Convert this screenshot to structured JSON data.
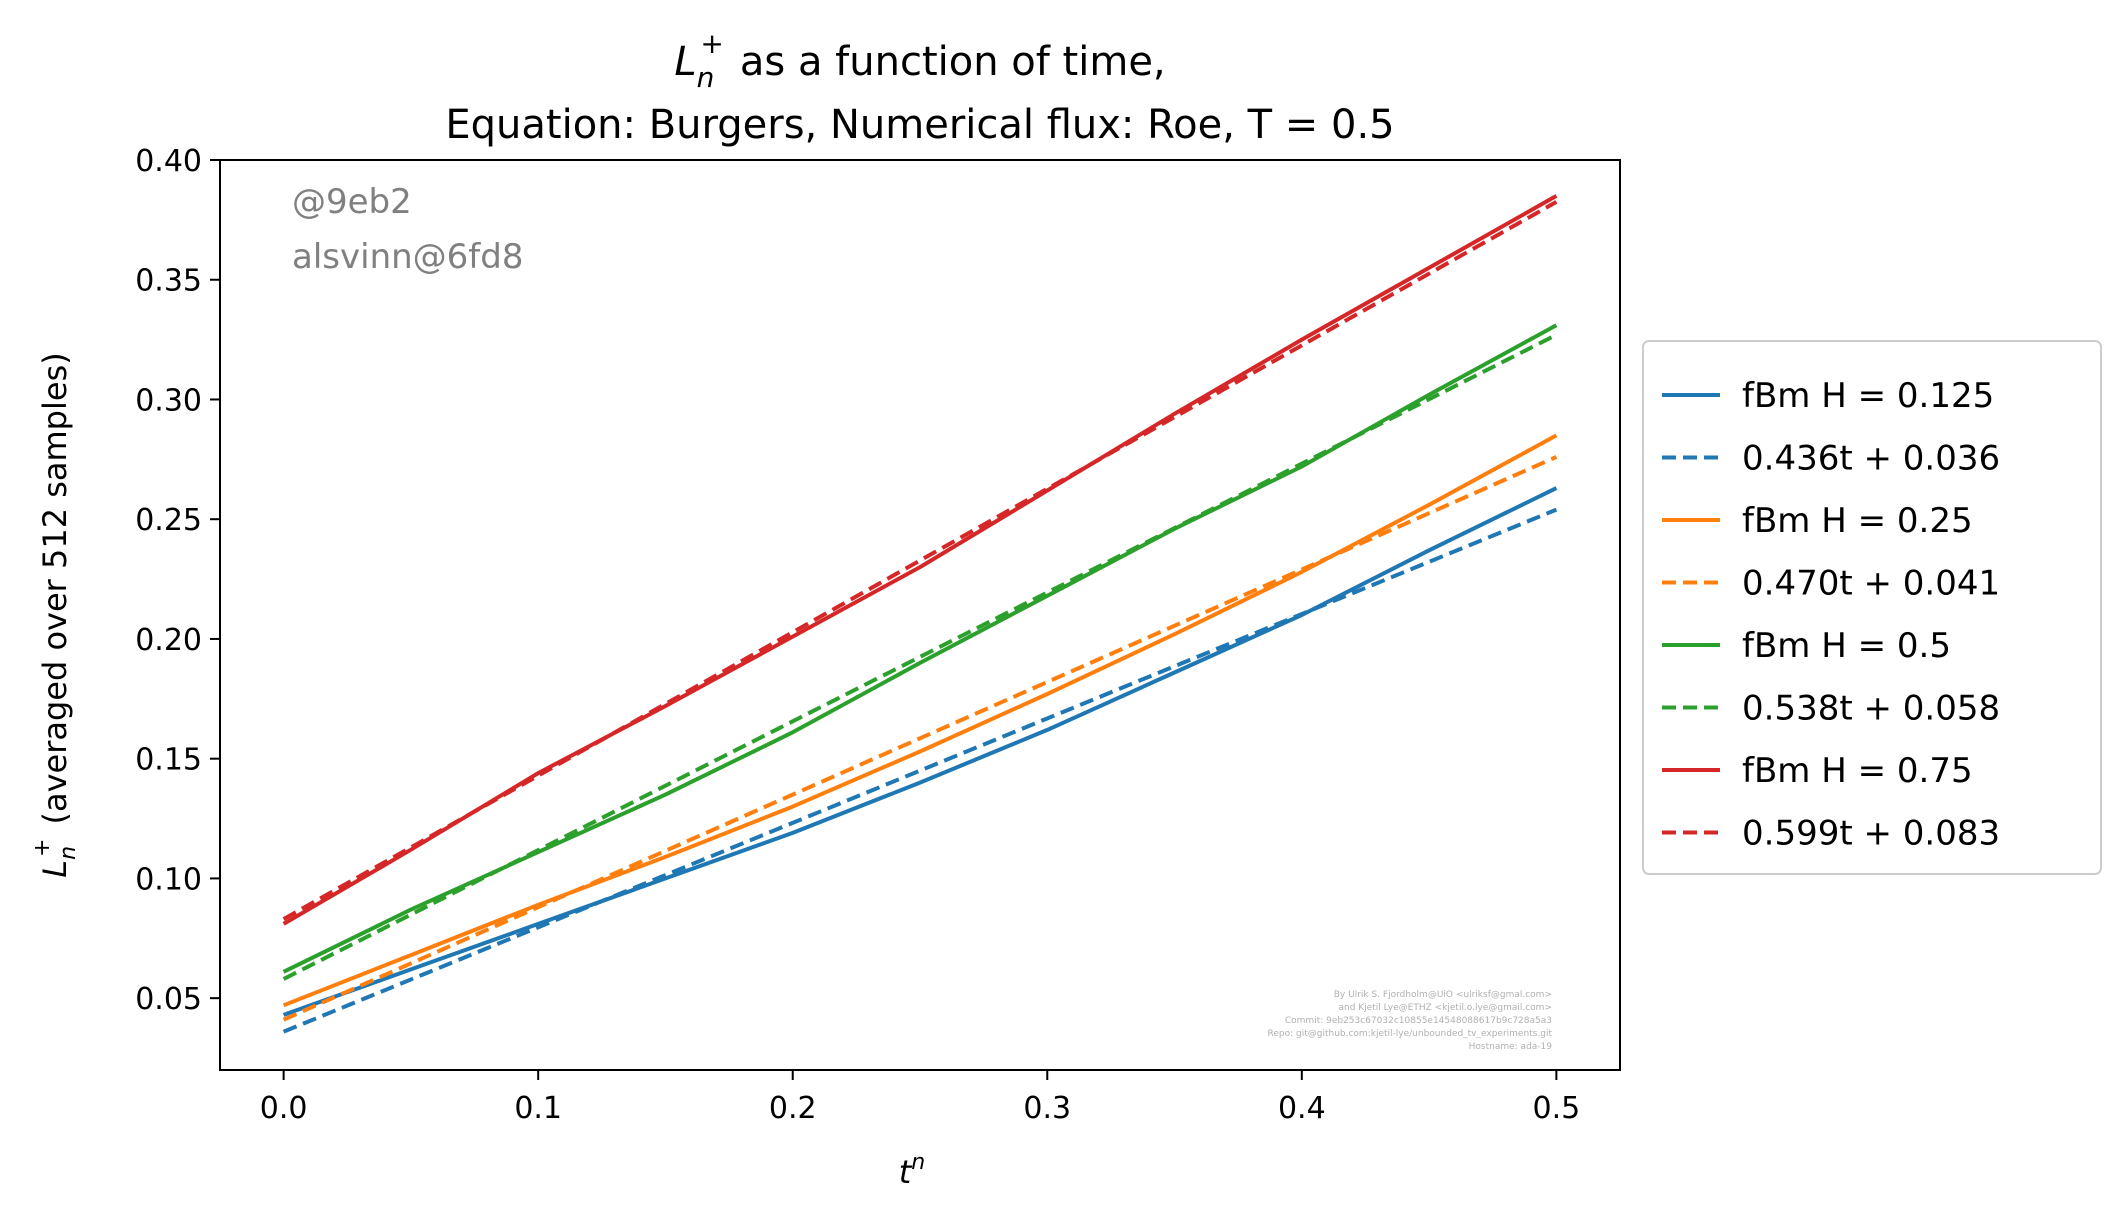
{
  "chart_data": {
    "type": "line",
    "title_main": "as a function of time,",
    "title_symbol": "L",
    "title_sub": "n",
    "title_sup": "+",
    "subtitle": "Equation: Burgers, Numerical flux: Roe, T = 0.5",
    "xlabel": "t",
    "xlabel_sup": "n",
    "ylabel_symbol": "L",
    "ylabel_sub": "n",
    "ylabel_sup": "+",
    "ylabel_text": "(averaged over 512 samples)",
    "xlim": [
      -0.025,
      0.525
    ],
    "ylim": [
      0.02,
      0.4
    ],
    "xticks": [
      0.0,
      0.1,
      0.2,
      0.3,
      0.4,
      0.5
    ],
    "xtick_labels": [
      "0.0",
      "0.1",
      "0.2",
      "0.3",
      "0.4",
      "0.5"
    ],
    "yticks": [
      0.05,
      0.1,
      0.15,
      0.2,
      0.25,
      0.3,
      0.35,
      0.4
    ],
    "ytick_labels": [
      "0.05",
      "0.10",
      "0.15",
      "0.20",
      "0.25",
      "0.30",
      "0.35",
      "0.40"
    ],
    "grid": false,
    "legend_position": "outside-right",
    "series": [
      {
        "name": "fBm H = 0.125",
        "legend_prefix": "fBm ",
        "legend_math": "H = 0.125",
        "color": "#1f77b4",
        "style": "solid",
        "x": [
          0.0,
          0.05,
          0.1,
          0.15,
          0.2,
          0.25,
          0.3,
          0.35,
          0.4,
          0.45,
          0.5
        ],
        "y": [
          0.043,
          0.062,
          0.081,
          0.1,
          0.119,
          0.14,
          0.162,
          0.186,
          0.21,
          0.237,
          0.263
        ]
      },
      {
        "name": "0.436t + 0.036",
        "legend_prefix": "",
        "legend_math": "0.436t + 0.036",
        "color": "#1f77b4",
        "style": "dashed",
        "x": [
          0.0,
          0.5
        ],
        "y": [
          0.036,
          0.254
        ]
      },
      {
        "name": "fBm H = 0.25",
        "legend_prefix": "fBm ",
        "legend_math": "H = 0.25",
        "color": "#ff7f0e",
        "style": "solid",
        "x": [
          0.0,
          0.05,
          0.1,
          0.15,
          0.2,
          0.25,
          0.3,
          0.35,
          0.4,
          0.45,
          0.5
        ],
        "y": [
          0.047,
          0.068,
          0.089,
          0.109,
          0.13,
          0.153,
          0.177,
          0.202,
          0.228,
          0.256,
          0.285
        ]
      },
      {
        "name": "0.470t + 0.041",
        "legend_prefix": "",
        "legend_math": "0.470t + 0.041",
        "color": "#ff7f0e",
        "style": "dashed",
        "x": [
          0.0,
          0.5
        ],
        "y": [
          0.041,
          0.276
        ]
      },
      {
        "name": "fBm H = 0.5",
        "legend_prefix": "fBm ",
        "legend_math": "H = 0.5",
        "color": "#2ca02c",
        "style": "solid",
        "x": [
          0.0,
          0.05,
          0.1,
          0.15,
          0.2,
          0.25,
          0.3,
          0.35,
          0.4,
          0.45,
          0.5
        ],
        "y": [
          0.061,
          0.087,
          0.111,
          0.135,
          0.161,
          0.19,
          0.218,
          0.246,
          0.272,
          0.302,
          0.331
        ]
      },
      {
        "name": "0.538t + 0.058",
        "legend_prefix": "",
        "legend_math": "0.538t + 0.058",
        "color": "#2ca02c",
        "style": "dashed",
        "x": [
          0.0,
          0.5
        ],
        "y": [
          0.058,
          0.327
        ]
      },
      {
        "name": "fBm H = 0.75",
        "legend_prefix": "fBm ",
        "legend_math": "H = 0.75",
        "color": "#d62728",
        "style": "solid",
        "x": [
          0.0,
          0.05,
          0.1,
          0.15,
          0.2,
          0.25,
          0.3,
          0.35,
          0.4,
          0.45,
          0.5
        ],
        "y": [
          0.081,
          0.112,
          0.144,
          0.172,
          0.201,
          0.23,
          0.262,
          0.294,
          0.325,
          0.355,
          0.385
        ]
      },
      {
        "name": "0.599t + 0.083",
        "legend_prefix": "",
        "legend_math": "0.599t + 0.083",
        "color": "#d62728",
        "style": "dashed",
        "x": [
          0.0,
          0.5
        ],
        "y": [
          0.083,
          0.3825
        ]
      }
    ],
    "watermark_lines": [
      "@9eb2",
      "alsvinn@6fd8"
    ],
    "credit_lines": [
      "By Ulrik S. Fjordholm@UiO <ulriksf@gmal.com>",
      "and Kjetil Lye@ETHZ <kjetil.o.lye@gmail.com>",
      "Commit: 9eb253c67032c10855e14548088617b9c728a5a3",
      "Repo: git@github.com:kjetil-lye/unbounded_tv_experiments.git",
      "Hostname: ada-19"
    ]
  }
}
